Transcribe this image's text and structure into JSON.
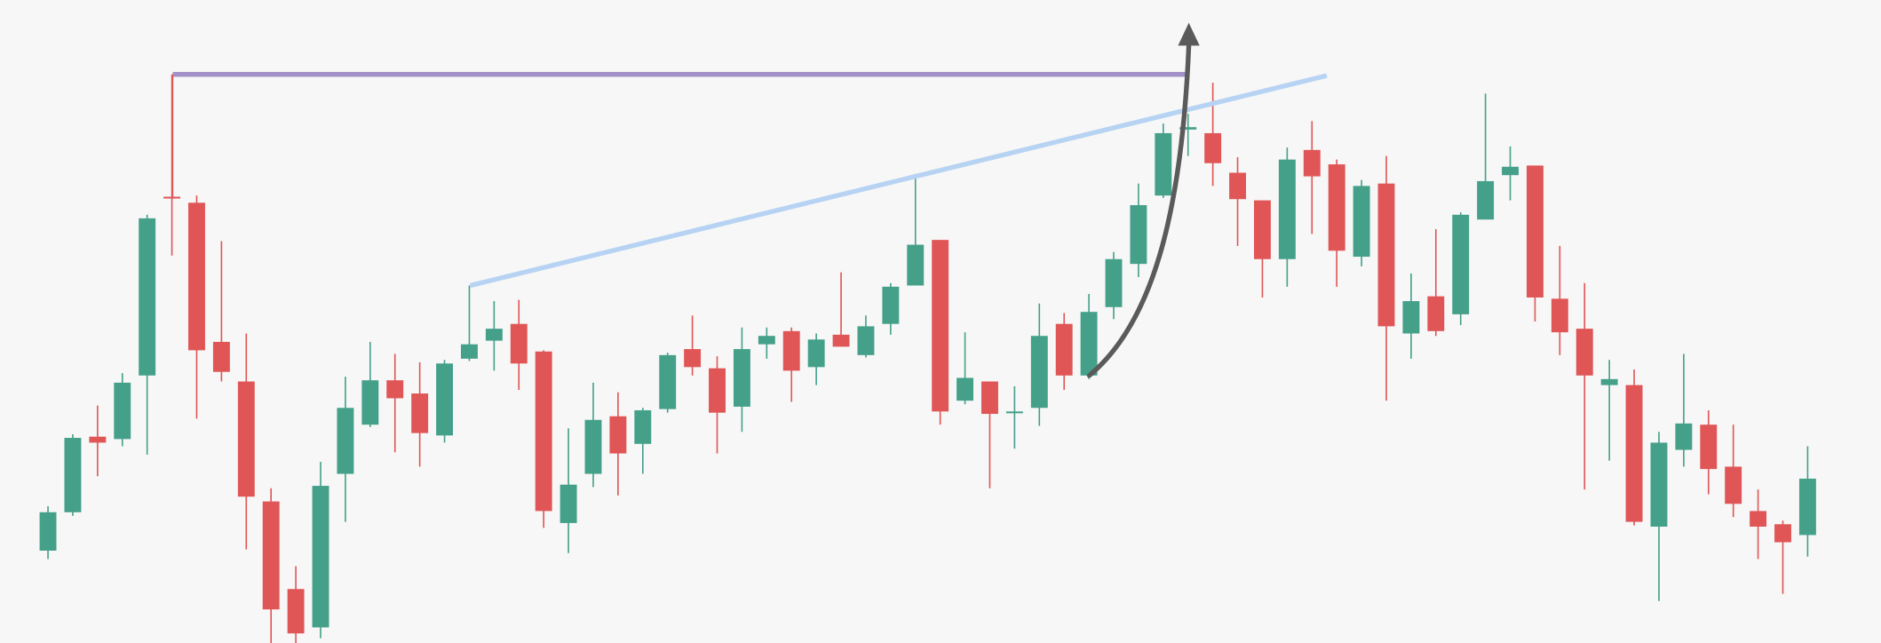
{
  "chart_data": {
    "type": "candlestick",
    "up_color": "#45a08a",
    "down_color": "#e05656",
    "ylim": [
      0,
      536
    ],
    "open": [
      77,
      109,
      172,
      170,
      223,
      372,
      367,
      251,
      218,
      118,
      45,
      13,
      141,
      182,
      219,
      208,
      173,
      237,
      252,
      266,
      243,
      100,
      141,
      189,
      166,
      195,
      245,
      229,
      197,
      249,
      260,
      230,
      257,
      240,
      266,
      298,
      336,
      202,
      218,
      192,
      196,
      266,
      223,
      280,
      316,
      373,
      428,
      425,
      392,
      369,
      320,
      411,
      399,
      322,
      383,
      258,
      289,
      274,
      353,
      390,
      398,
      287,
      262,
      215,
      215,
      97,
      161,
      182,
      147,
      110,
      99,
      90
    ],
    "high": [
      114,
      174,
      198,
      225,
      357,
      474,
      373,
      335,
      258,
      129,
      64,
      151,
      222,
      251,
      241,
      234,
      236,
      298,
      285,
      286,
      244,
      179,
      217,
      209,
      196,
      242,
      273,
      239,
      263,
      263,
      263,
      258,
      309,
      273,
      300,
      391,
      336,
      259,
      218,
      214,
      283,
      275,
      291,
      326,
      383,
      433,
      441,
      467,
      405,
      369,
      413,
      435,
      403,
      386,
      406,
      308,
      345,
      359,
      458,
      414,
      398,
      331,
      300,
      236,
      228,
      176,
      241,
      194,
      182,
      128,
      102,
      164
    ],
    "low": [
      70,
      106,
      139,
      164,
      157,
      323,
      187,
      218,
      78,
      0,
      0,
      4,
      101,
      180,
      159,
      147,
      167,
      235,
      227,
      211,
      96,
      75,
      130,
      123,
      141,
      192,
      223,
      158,
      176,
      237,
      201,
      215,
      247,
      238,
      257,
      298,
      182,
      199,
      129,
      162,
      181,
      211,
      220,
      270,
      305,
      371,
      406,
      381,
      331,
      288,
      297,
      341,
      297,
      314,
      202,
      237,
      256,
      265,
      353,
      369,
      268,
      240,
      128,
      152,
      98,
      35,
      147,
      124,
      105,
      70,
      41,
      72
    ],
    "close": [
      109,
      171,
      167,
      217,
      354,
      371,
      244,
      226,
      122,
      28,
      8,
      131,
      196,
      219,
      204,
      175,
      233,
      249,
      262,
      233,
      110,
      132,
      186,
      158,
      194,
      240,
      230,
      192,
      245,
      256,
      227,
      253,
      247,
      264,
      297,
      332,
      193,
      221,
      191,
      193,
      256,
      223,
      276,
      320,
      365,
      425,
      430,
      400,
      370,
      320,
      403,
      389,
      327,
      381,
      264,
      285,
      260,
      357,
      385,
      397,
      288,
      259,
      223,
      220,
      101,
      167,
      183,
      145,
      116,
      97,
      84,
      137
    ]
  }
}
